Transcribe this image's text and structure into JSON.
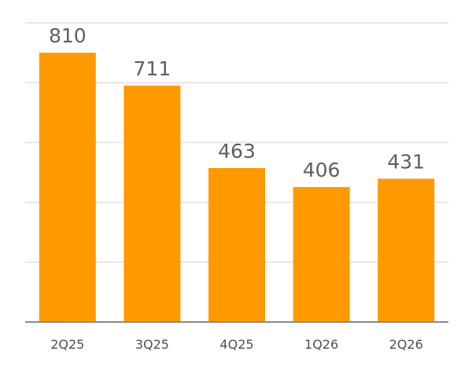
{
  "chart_data": {
    "type": "bar",
    "categories": [
      "2Q25",
      "3Q25",
      "4Q25",
      "1Q26",
      "2Q26"
    ],
    "values": [
      810,
      711,
      463,
      406,
      431
    ],
    "data_labels": [
      "810",
      "711",
      "463",
      "406",
      "431"
    ],
    "title": "",
    "xlabel": "",
    "ylabel": "",
    "ylim": [
      0,
      900
    ],
    "grid": true,
    "legend": "none",
    "colors": {
      "bar": "#FF9900",
      "grid": "#E6E6E6",
      "axis": "#8A8A8A",
      "value_text": "#5F5F5F",
      "category_text": "#4F4F4F"
    }
  }
}
